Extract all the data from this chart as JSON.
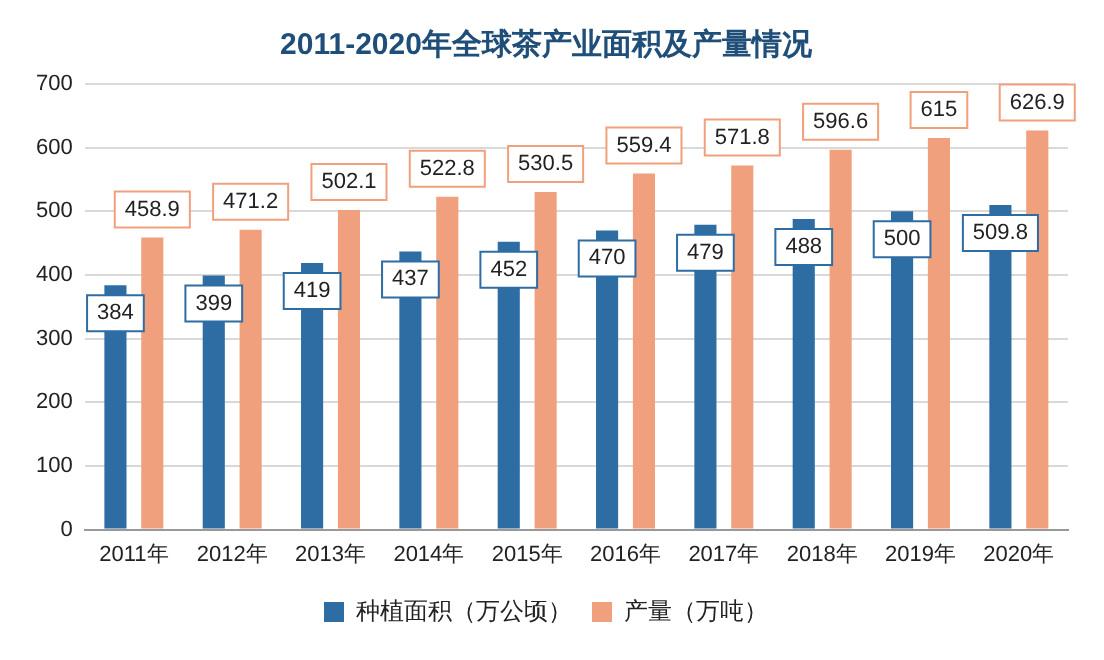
{
  "chart_data": {
    "type": "bar",
    "title": "2011-2020年全球茶产业面积及产量情况",
    "categories": [
      "2011年",
      "2012年",
      "2013年",
      "2014年",
      "2015年",
      "2016年",
      "2017年",
      "2018年",
      "2019年",
      "2020年"
    ],
    "series": [
      {
        "name": "种植面积（万公顷）",
        "color": "#2e6da4",
        "values": [
          384,
          399,
          419,
          437,
          452,
          470,
          479,
          488,
          500,
          509.8
        ]
      },
      {
        "name": "产量（万吨）",
        "color": "#f0a07c",
        "values": [
          458.9,
          471.2,
          502.1,
          522.8,
          530.5,
          559.4,
          571.8,
          596.6,
          615,
          626.9
        ]
      }
    ],
    "ylim": [
      0,
      700
    ],
    "yticks": [
      0,
      100,
      200,
      300,
      400,
      500,
      600,
      700
    ],
    "grid": "y",
    "legend": "bottom",
    "data_labels": true
  }
}
